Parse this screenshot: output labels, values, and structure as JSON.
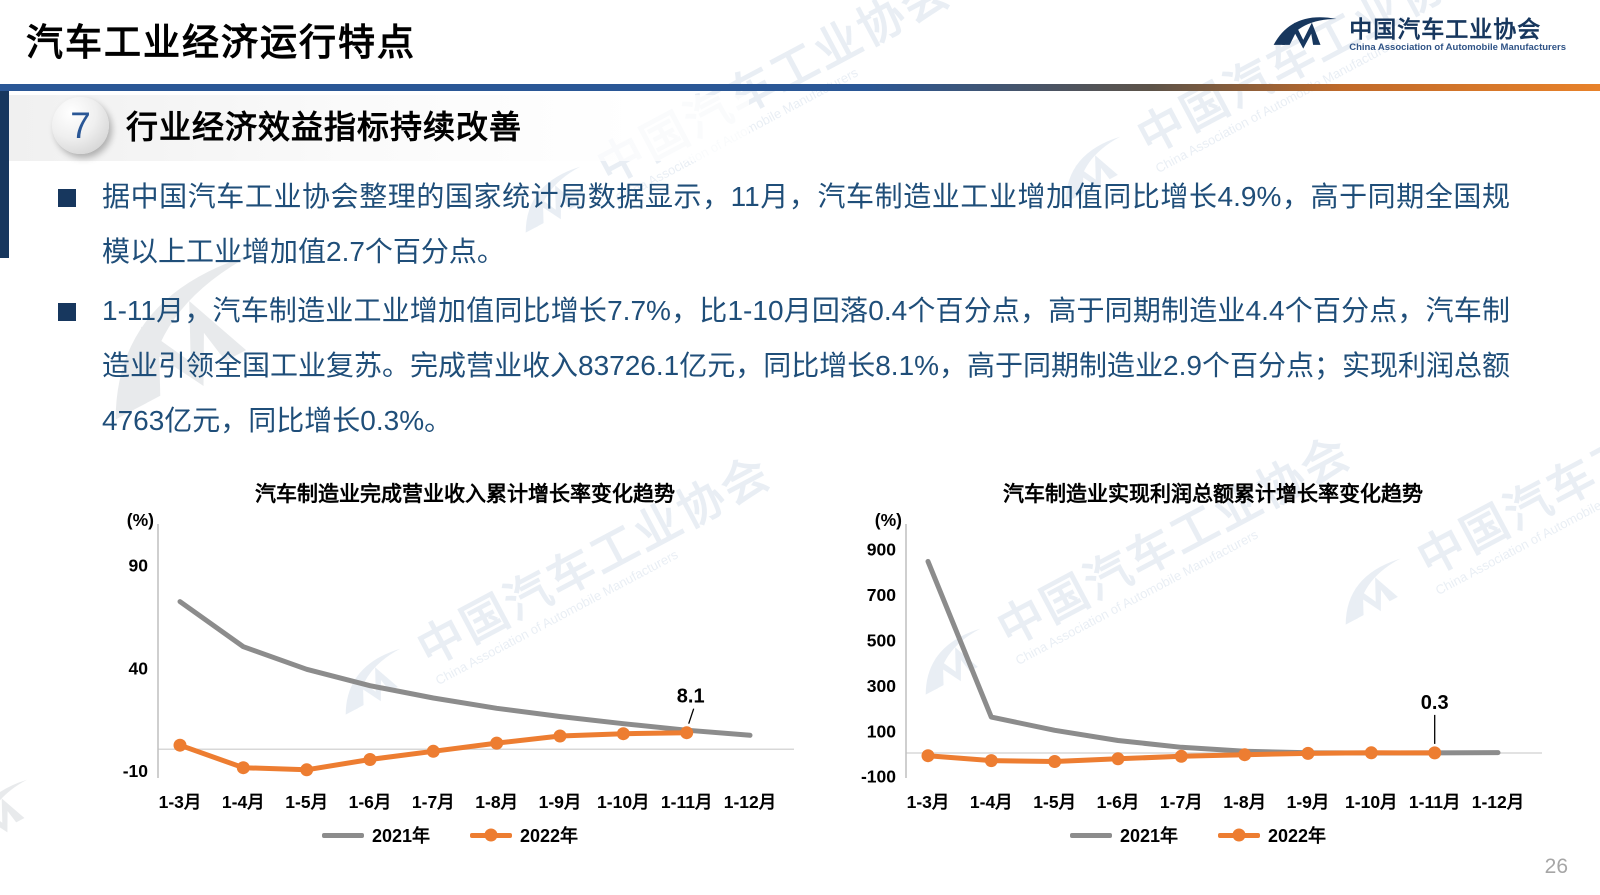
{
  "header": {
    "title": "汽车工业经济运行特点",
    "logo": {
      "name_cn": "中国汽车工业协会",
      "name_en": "China Association of Automobile Manufacturers"
    }
  },
  "section": {
    "number": "7",
    "heading": "行业经济效益指标持续改善"
  },
  "bullets": [
    "据中国汽车工业协会整理的国家统计局数据显示，11月，汽车制造业工业增加值同比增长4.9%，高于同期全国规模以上工业增加值2.7个百分点。",
    "1-11月，汽车制造业工业增加值同比增长7.7%，比1-10月回落0.4个百分点，高于同期制造业4.4个百分点，汽车制造业引领全国工业复苏。完成营业收入83726.1亿元，同比增长8.1%，高于同期制造业2.9个百分点；实现利润总额4763亿元，同比增长0.3%。"
  ],
  "watermark": {
    "cn": "中国汽车工业协会",
    "en": "China Association of Automobile Manufacturers"
  },
  "page_number": "26",
  "colors": {
    "navy": "#17375E",
    "accent_blue": "#2A5796",
    "body_text_blue": "#1F4E79",
    "series_2021_gray": "#8C8C8C",
    "series_2022_orange": "#ED7D31",
    "divider_orange": "#E8822A",
    "axis_gray": "#BFBFBF",
    "zero_line_gray": "#D8D8D8",
    "page_number_gray": "#A6A6A6"
  },
  "chart_data": [
    {
      "type": "line",
      "title": "汽车制造业完成营业收入累计增长率变化趋势",
      "unit_label": "(%)",
      "categories": [
        "1-3月",
        "1-4月",
        "1-5月",
        "1-6月",
        "1-7月",
        "1-8月",
        "1-9月",
        "1-10月",
        "1-11月",
        "1-12月"
      ],
      "series": [
        {
          "key": "y2021",
          "name": "2021年",
          "color": "#8C8C8C",
          "markers": false,
          "values": [
            72,
            50,
            39,
            31,
            25,
            20,
            16,
            12.5,
            9.3,
            6.8
          ]
        },
        {
          "key": "y2022",
          "name": "2022年",
          "color": "#ED7D31",
          "markers": true,
          "values": [
            2,
            -9,
            -10,
            -5,
            -1,
            3,
            6.5,
            7.6,
            8.1
          ]
        }
      ],
      "y_ticks": [
        90,
        40,
        -10
      ],
      "ylim": [
        -14,
        104
      ],
      "grid": false,
      "legend_position": "bottom",
      "annotation": {
        "text": "8.1",
        "series_index": 1,
        "point_index": 8,
        "leader": "diagonal"
      }
    },
    {
      "type": "line",
      "title": "汽车制造业实现利润总额累计增长率变化趋势",
      "unit_label": "(%)",
      "categories": [
        "1-3月",
        "1-4月",
        "1-5月",
        "1-6月",
        "1-7月",
        "1-8月",
        "1-9月",
        "1-10月",
        "1-11月",
        "1-12月"
      ],
      "series": [
        {
          "key": "y2021",
          "name": "2021年",
          "color": "#8C8C8C",
          "markers": false,
          "values": [
            843,
            158,
            100,
            55,
            25,
            8,
            1,
            0,
            0.3,
            1.9
          ]
        },
        {
          "key": "y2022",
          "name": "2022年",
          "color": "#ED7D31",
          "markers": true,
          "values": [
            -11.9,
            -33.4,
            -37.5,
            -25.5,
            -14.4,
            -7.3,
            -1.9,
            0.8,
            0.3
          ]
        }
      ],
      "y_ticks": [
        900,
        700,
        500,
        300,
        100,
        -100
      ],
      "ylim": [
        -110,
        955
      ],
      "grid": false,
      "legend_position": "bottom",
      "annotation": {
        "text": "0.3",
        "series_index": 1,
        "point_index": 8,
        "leader": "vertical"
      }
    }
  ]
}
